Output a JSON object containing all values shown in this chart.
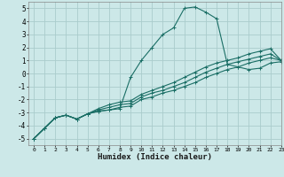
{
  "title": "",
  "xlabel": "Humidex (Indice chaleur)",
  "bg_color": "#cce8e8",
  "grid_color": "#aacccc",
  "line_color": "#1a6e65",
  "xlim": [
    -0.5,
    23
  ],
  "ylim": [
    -5.5,
    5.5
  ],
  "xticks": [
    0,
    1,
    2,
    3,
    4,
    5,
    6,
    7,
    8,
    9,
    10,
    11,
    12,
    13,
    14,
    15,
    16,
    17,
    18,
    19,
    20,
    21,
    22,
    23
  ],
  "yticks": [
    -5,
    -4,
    -3,
    -2,
    -1,
    0,
    1,
    2,
    3,
    4,
    5
  ],
  "series": [
    {
      "x": [
        0,
        1,
        2,
        3,
        4,
        5,
        6,
        7,
        8,
        9,
        10,
        11,
        12,
        13,
        14,
        15,
        16,
        17,
        18,
        19,
        20,
        21,
        22,
        23
      ],
      "y": [
        -5.0,
        -4.2,
        -3.4,
        -3.2,
        -3.5,
        -3.1,
        -2.9,
        -2.8,
        -2.7,
        -0.3,
        1.0,
        2.0,
        3.0,
        3.5,
        5.0,
        5.1,
        4.7,
        4.2,
        0.7,
        0.5,
        0.3,
        0.4,
        0.8,
        0.9
      ]
    },
    {
      "x": [
        0,
        1,
        2,
        3,
        4,
        5,
        6,
        7,
        8,
        9,
        10,
        11,
        12,
        13,
        14,
        15,
        16,
        17,
        18,
        19,
        20,
        21,
        22,
        23
      ],
      "y": [
        -5.0,
        -4.2,
        -3.4,
        -3.2,
        -3.5,
        -3.1,
        -2.9,
        -2.8,
        -2.6,
        -2.5,
        -2.0,
        -1.8,
        -1.5,
        -1.3,
        -1.0,
        -0.7,
        -0.3,
        0.0,
        0.3,
        0.5,
        0.8,
        1.0,
        1.2,
        1.0
      ]
    },
    {
      "x": [
        0,
        1,
        2,
        3,
        4,
        5,
        6,
        7,
        8,
        9,
        10,
        11,
        12,
        13,
        14,
        15,
        16,
        17,
        18,
        19,
        20,
        21,
        22,
        23
      ],
      "y": [
        -5.0,
        -4.2,
        -3.4,
        -3.2,
        -3.5,
        -3.1,
        -2.8,
        -2.6,
        -2.4,
        -2.3,
        -1.8,
        -1.5,
        -1.3,
        -1.0,
        -0.7,
        -0.3,
        0.1,
        0.4,
        0.7,
        0.9,
        1.1,
        1.3,
        1.5,
        1.0
      ]
    },
    {
      "x": [
        0,
        1,
        2,
        3,
        4,
        5,
        6,
        7,
        8,
        9,
        10,
        11,
        12,
        13,
        14,
        15,
        16,
        17,
        18,
        19,
        20,
        21,
        22,
        23
      ],
      "y": [
        -5.0,
        -4.2,
        -3.4,
        -3.2,
        -3.5,
        -3.1,
        -2.7,
        -2.4,
        -2.2,
        -2.1,
        -1.6,
        -1.3,
        -1.0,
        -0.7,
        -0.3,
        0.1,
        0.5,
        0.8,
        1.0,
        1.2,
        1.5,
        1.7,
        1.9,
        1.0
      ]
    }
  ]
}
